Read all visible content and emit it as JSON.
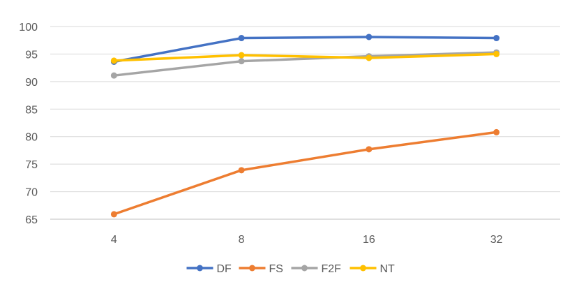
{
  "chart_data": {
    "type": "line",
    "title": "",
    "xlabel": "",
    "ylabel": "",
    "categories": [
      "4",
      "8",
      "16",
      "32"
    ],
    "ylim": [
      65,
      100
    ],
    "yticks": [
      65,
      70,
      75,
      80,
      85,
      90,
      95,
      100
    ],
    "grid": true,
    "legend_position": "bottom",
    "series": [
      {
        "name": "DF",
        "color": "#4472C4",
        "values": [
          93.6,
          97.9,
          98.1,
          97.9
        ]
      },
      {
        "name": "FS",
        "color": "#ED7D31",
        "values": [
          65.9,
          73.9,
          77.7,
          80.8
        ]
      },
      {
        "name": "F2F",
        "color": "#A5A5A5",
        "values": [
          91.1,
          93.7,
          94.6,
          95.3
        ]
      },
      {
        "name": "NT",
        "color": "#FFC000",
        "values": [
          93.8,
          94.8,
          94.3,
          95.0
        ]
      }
    ]
  }
}
